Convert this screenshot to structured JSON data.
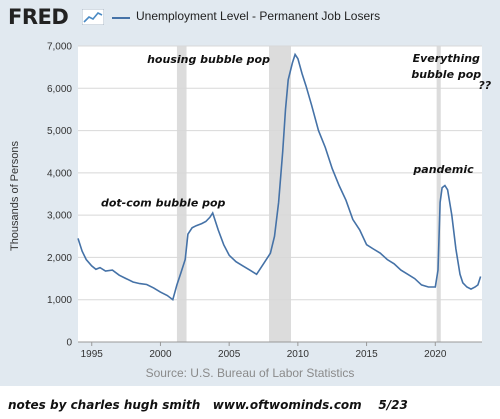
{
  "header": {
    "logo_text": "FRED",
    "logo_icon": "fred-graph-icon",
    "legend_color": "#4572a7"
  },
  "footer": {
    "source": "Source: U.S. Bureau of Labor Statistics",
    "note": "notes by charles hugh smith   www.oftwominds.com    5/23"
  },
  "chart_data": {
    "type": "line",
    "title": "Unemployment Level - Permanent Job Losers",
    "xlabel": "",
    "ylabel": "Thousands of Persons",
    "xlim": [
      1994,
      2023.4
    ],
    "ylim": [
      0,
      7000
    ],
    "yticks": [
      "0",
      "1,000",
      "2,000",
      "3,000",
      "4,000",
      "5,000",
      "6,000",
      "7,000"
    ],
    "xticks": [
      "1995",
      "2000",
      "2005",
      "2010",
      "2015",
      "2020"
    ],
    "grid": true,
    "line_color": "#4572a7",
    "recessions": [
      [
        2001.2,
        2001.9
      ],
      [
        2007.9,
        2009.5
      ],
      [
        2020.1,
        2020.4
      ]
    ],
    "series": [
      {
        "x": [
          1994.0,
          1994.3,
          1994.6,
          1995.0,
          1995.3,
          1995.6,
          1996.0,
          1996.5,
          1997.0,
          1997.5,
          1998.0,
          1998.5,
          1999.0,
          1999.5,
          2000.0,
          2000.5,
          2000.9,
          2001.2,
          2001.5,
          2001.8,
          2002.0,
          2002.3,
          2002.6,
          2003.0,
          2003.3,
          2003.6,
          2003.8,
          2004.2,
          2004.6,
          2005.0,
          2005.5,
          2006.0,
          2006.5,
          2007.0,
          2007.5,
          2008.0,
          2008.3,
          2008.6,
          2008.9,
          2009.1,
          2009.3,
          2009.6,
          2009.8,
          2010.0,
          2010.3,
          2010.6,
          2011.0,
          2011.5,
          2012.0,
          2012.5,
          2013.0,
          2013.5,
          2014.0,
          2014.5,
          2015.0,
          2015.5,
          2016.0,
          2016.5,
          2017.0,
          2017.5,
          2018.0,
          2018.5,
          2019.0,
          2019.5,
          2020.0,
          2020.2,
          2020.35,
          2020.5,
          2020.7,
          2020.9,
          2021.2,
          2021.5,
          2021.8,
          2022.0,
          2022.3,
          2022.6,
          2022.9,
          2023.1,
          2023.3
        ],
        "values": [
          2450,
          2150,
          1950,
          1800,
          1720,
          1760,
          1680,
          1700,
          1580,
          1500,
          1420,
          1380,
          1360,
          1280,
          1180,
          1100,
          1000,
          1350,
          1650,
          1950,
          2550,
          2700,
          2750,
          2800,
          2850,
          2950,
          3050,
          2650,
          2300,
          2050,
          1900,
          1800,
          1700,
          1600,
          1850,
          2100,
          2500,
          3300,
          4500,
          5500,
          6200,
          6600,
          6800,
          6700,
          6350,
          6050,
          5600,
          5000,
          4600,
          4100,
          3700,
          3350,
          2900,
          2650,
          2300,
          2200,
          2100,
          1950,
          1850,
          1700,
          1600,
          1500,
          1350,
          1300,
          1300,
          1700,
          3300,
          3650,
          3700,
          3600,
          3000,
          2200,
          1600,
          1400,
          1300,
          1250,
          1300,
          1350,
          1550
        ]
      }
    ],
    "annotations": [
      {
        "text": "housing bubble pop",
        "x": 2003.5,
        "y": 6600
      },
      {
        "text": "dot-com bubble pop",
        "x": 2000.2,
        "y": 3200
      },
      {
        "text": "pandemic",
        "x": 2020.6,
        "y": 4000
      },
      {
        "text": "Everything",
        "x": 2020.8,
        "y": 6620
      },
      {
        "text": "bubble pop",
        "x": 2020.8,
        "y": 6240
      },
      {
        "text": "??",
        "x": 2023.6,
        "y": 5980
      }
    ]
  }
}
